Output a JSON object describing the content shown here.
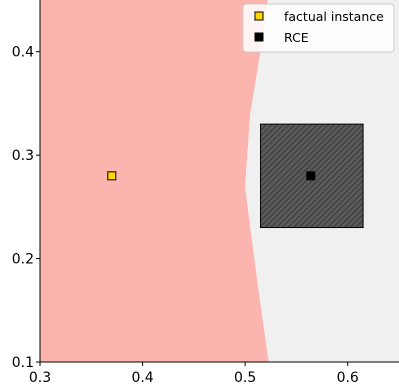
{
  "chart_data": {
    "type": "scatter",
    "title": "",
    "xlabel": "",
    "ylabel": "",
    "xlim": [
      0.3,
      0.65
    ],
    "ylim": [
      0.1,
      0.45
    ],
    "xticks": [
      0.3,
      0.4,
      0.5,
      0.6
    ],
    "yticks": [
      0.1,
      0.2,
      0.3,
      0.4
    ],
    "xtick_labels": [
      "0.3",
      "0.4",
      "0.5",
      "0.6"
    ],
    "ytick_labels": [
      "0.1",
      "0.2",
      "0.3",
      "0.4"
    ],
    "grid": false,
    "legend_position": "top-right",
    "regions": [
      {
        "color": "#fbb4ae",
        "boundary": [
          [
            0.3,
            0.1
          ],
          [
            0.3,
            0.45
          ],
          [
            0.522,
            0.45
          ],
          [
            0.515,
            0.4
          ],
          [
            0.505,
            0.34
          ],
          [
            0.5,
            0.27
          ],
          [
            0.505,
            0.23
          ],
          [
            0.513,
            0.17
          ],
          [
            0.523,
            0.1
          ]
        ]
      },
      {
        "color": "#f0f0f0",
        "boundary": [
          [
            0.523,
            0.1
          ],
          [
            0.513,
            0.17
          ],
          [
            0.505,
            0.23
          ],
          [
            0.5,
            0.27
          ],
          [
            0.505,
            0.34
          ],
          [
            0.515,
            0.4
          ],
          [
            0.522,
            0.45
          ],
          [
            0.65,
            0.45
          ],
          [
            0.65,
            0.1
          ]
        ]
      }
    ],
    "rce_box": {
      "x_range": [
        0.515,
        0.615
      ],
      "y_range": [
        0.23,
        0.33
      ],
      "fill": "#555555",
      "hatch": "////"
    },
    "series": [
      {
        "name": "factual instance",
        "marker": "square",
        "color": "#ffd700",
        "points": [
          [
            0.37,
            0.28
          ]
        ]
      },
      {
        "name": "RCE",
        "marker": "square",
        "color": "#000000",
        "points": [
          [
            0.564,
            0.28
          ]
        ]
      }
    ]
  }
}
